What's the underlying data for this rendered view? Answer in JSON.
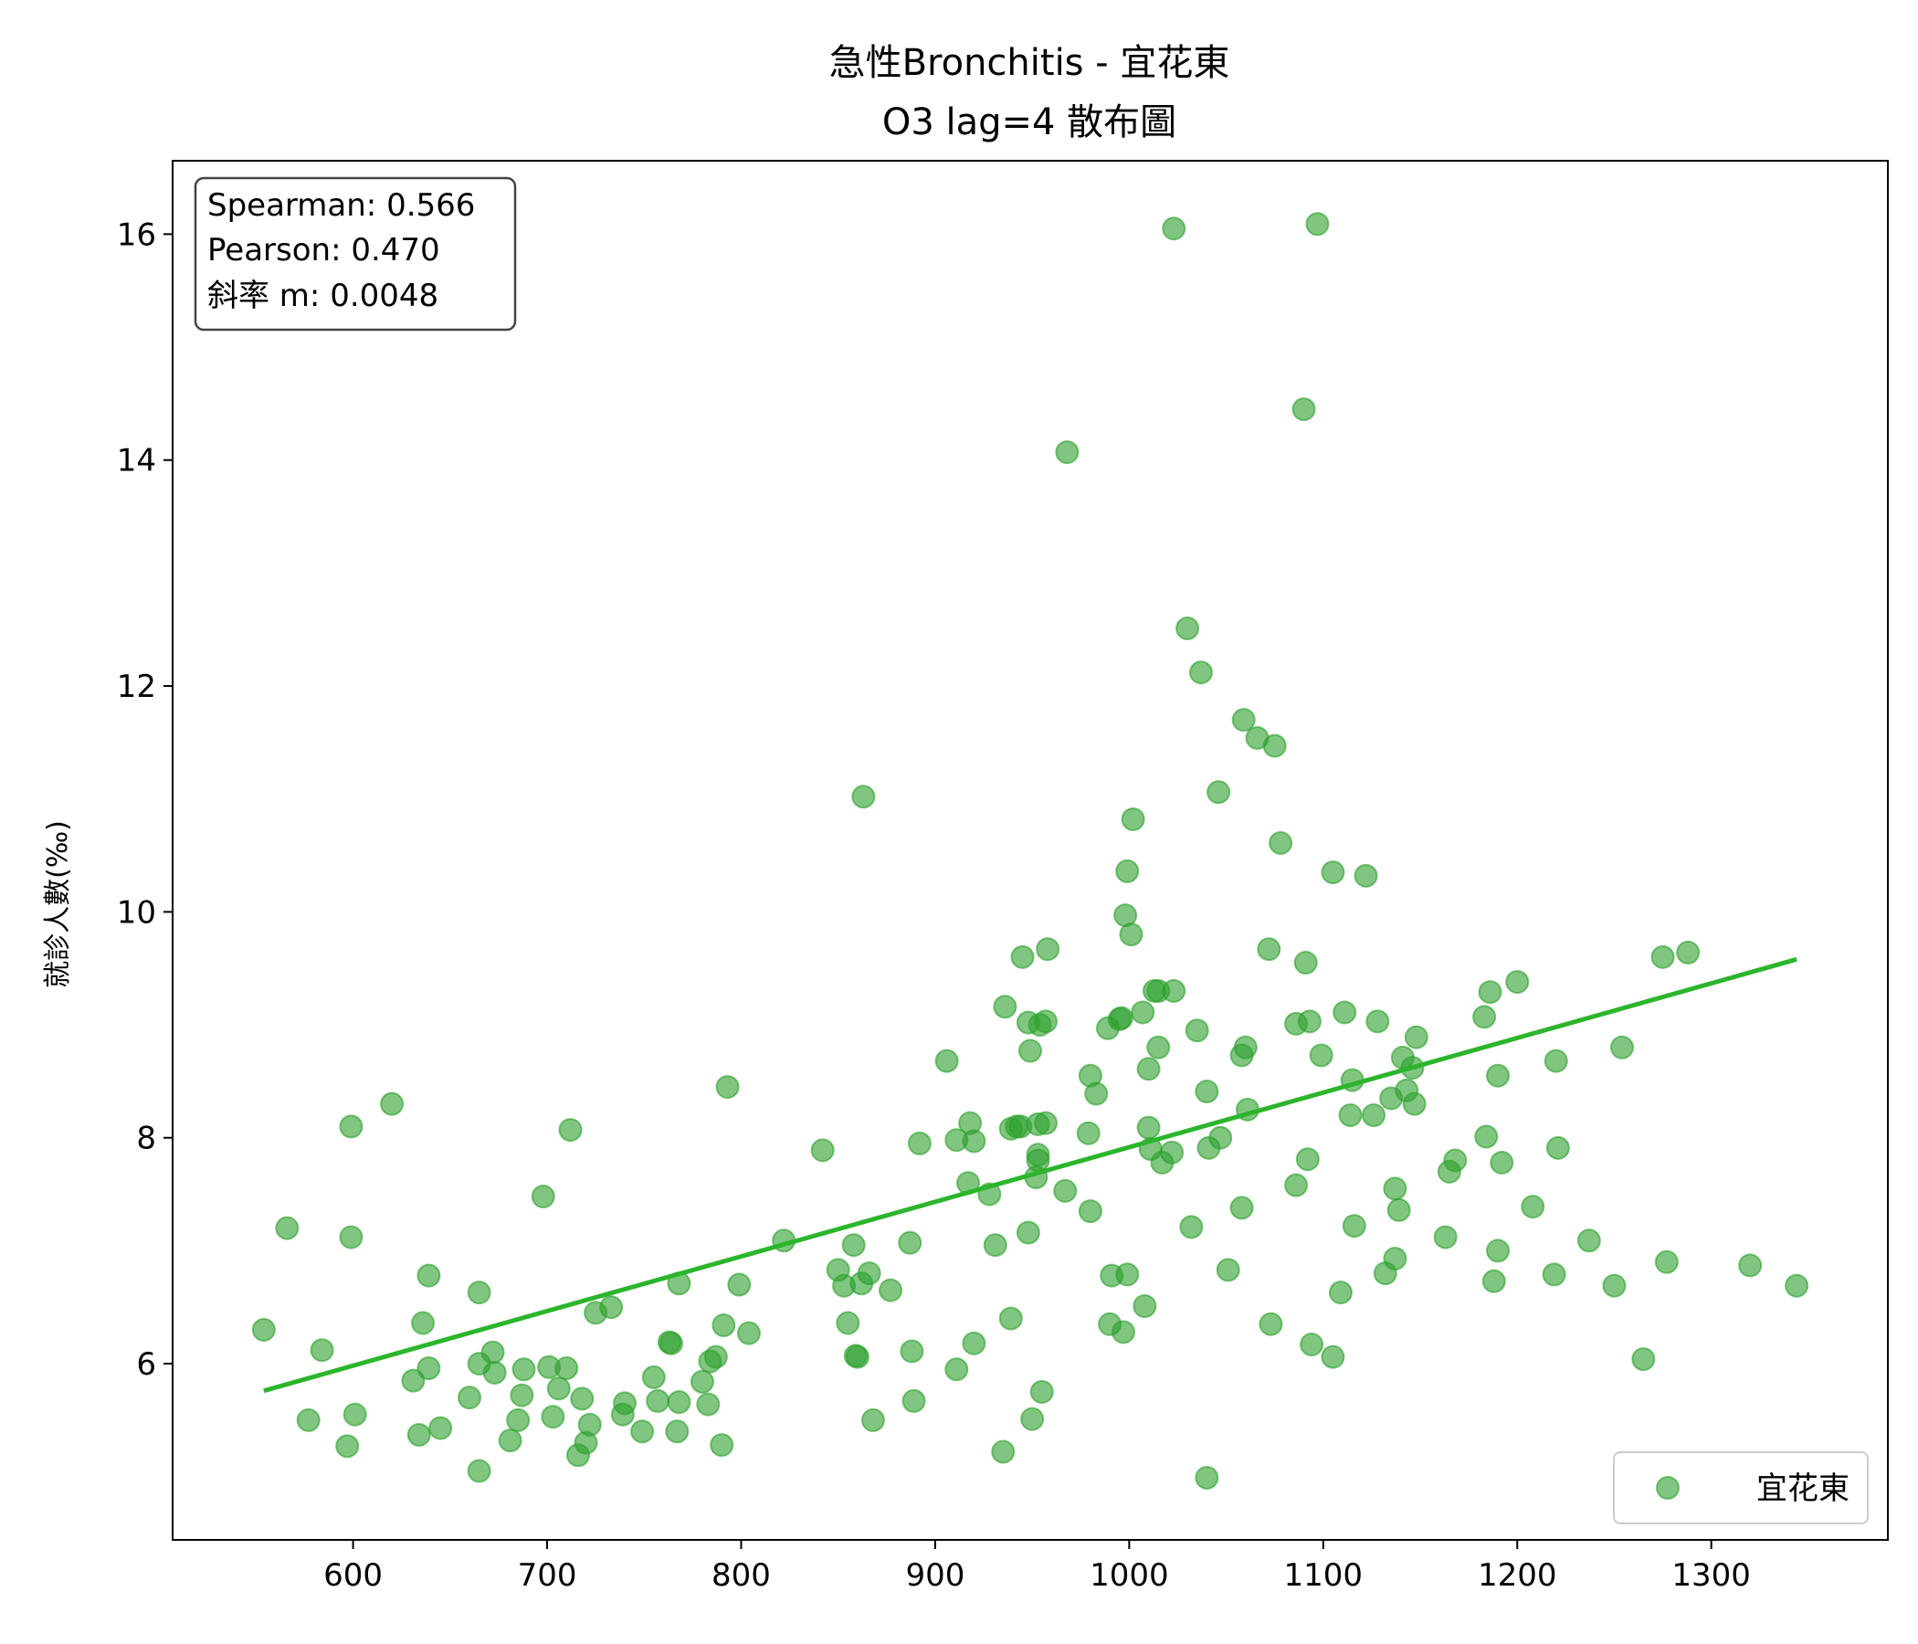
{
  "chart_data": {
    "type": "scatter",
    "title": "急性Bronchitis - 宜花東",
    "subtitle": "O3 lag=4 散布圖",
    "xlabel": "",
    "ylabel": "就診人數(‰)",
    "xlim": [
      507,
      1391
    ],
    "ylim": [
      4.44,
      16.65
    ],
    "xticks": [
      600,
      700,
      800,
      900,
      1000,
      1100,
      1200,
      1300
    ],
    "yticks": [
      6,
      8,
      10,
      12,
      14,
      16
    ],
    "grid": false,
    "legend_position": "bottom-right",
    "stats": [
      "Spearman: 0.566",
      "Pearson: 0.470",
      "斜率 m: 0.0048"
    ],
    "series": [
      {
        "name": "宜花東",
        "color": "#2ca02c",
        "points": [
          [
            554,
            6.3
          ],
          [
            566,
            7.2
          ],
          [
            577,
            5.5
          ],
          [
            584,
            6.12
          ],
          [
            597,
            5.27
          ],
          [
            599,
            8.1
          ],
          [
            599,
            7.12
          ],
          [
            601,
            5.55
          ],
          [
            620,
            8.3
          ],
          [
            631,
            5.85
          ],
          [
            634,
            5.37
          ],
          [
            636,
            6.36
          ],
          [
            639,
            6.78
          ],
          [
            639,
            5.96
          ],
          [
            645,
            5.43
          ],
          [
            660,
            5.7
          ],
          [
            665,
            5.05
          ],
          [
            665,
            6.0
          ],
          [
            665,
            6.63
          ],
          [
            672,
            6.1
          ],
          [
            673,
            5.92
          ],
          [
            681,
            5.32
          ],
          [
            685,
            5.5
          ],
          [
            687,
            5.72
          ],
          [
            688,
            5.95
          ],
          [
            698,
            7.48
          ],
          [
            701,
            5.97
          ],
          [
            703,
            5.53
          ],
          [
            706,
            5.78
          ],
          [
            710,
            5.96
          ],
          [
            712,
            8.07
          ],
          [
            716,
            5.19
          ],
          [
            718,
            5.69
          ],
          [
            720,
            5.3
          ],
          [
            722,
            5.46
          ],
          [
            725,
            6.45
          ],
          [
            733,
            6.5
          ],
          [
            739,
            5.55
          ],
          [
            740,
            5.65
          ],
          [
            749,
            5.4
          ],
          [
            755,
            5.88
          ],
          [
            757,
            5.67
          ],
          [
            763,
            6.19
          ],
          [
            764,
            6.18
          ],
          [
            767,
            5.4
          ],
          [
            768,
            5.66
          ],
          [
            768,
            6.71
          ],
          [
            780,
            5.84
          ],
          [
            783,
            5.64
          ],
          [
            784,
            6.02
          ],
          [
            787,
            6.06
          ],
          [
            790,
            5.28
          ],
          [
            791,
            6.34
          ],
          [
            793,
            8.45
          ],
          [
            799,
            6.7
          ],
          [
            804,
            6.27
          ],
          [
            822,
            7.09
          ],
          [
            842,
            7.89
          ],
          [
            850,
            6.83
          ],
          [
            853,
            6.69
          ],
          [
            855,
            6.36
          ],
          [
            858,
            7.05
          ],
          [
            859,
            6.07
          ],
          [
            860,
            6.06
          ],
          [
            862,
            6.71
          ],
          [
            863,
            11.02
          ],
          [
            866,
            6.8
          ],
          [
            868,
            5.5
          ],
          [
            877,
            6.65
          ],
          [
            887,
            7.07
          ],
          [
            888,
            6.11
          ],
          [
            889,
            5.67
          ],
          [
            892,
            7.95
          ],
          [
            906,
            8.68
          ],
          [
            911,
            7.98
          ],
          [
            911,
            5.95
          ],
          [
            917,
            7.6
          ],
          [
            918,
            8.13
          ],
          [
            920,
            7.97
          ],
          [
            920,
            6.18
          ],
          [
            928,
            7.5
          ],
          [
            931,
            7.05
          ],
          [
            935,
            5.22
          ],
          [
            936,
            9.16
          ],
          [
            939,
            8.08
          ],
          [
            939,
            6.4
          ],
          [
            942,
            8.1
          ],
          [
            944,
            8.1
          ],
          [
            945,
            9.6
          ],
          [
            948,
            7.16
          ],
          [
            948,
            9.02
          ],
          [
            949,
            8.77
          ],
          [
            950,
            5.51
          ],
          [
            952,
            7.65
          ],
          [
            953,
            7.85
          ],
          [
            953,
            7.8
          ],
          [
            953,
            8.12
          ],
          [
            954,
            9.0
          ],
          [
            955,
            5.75
          ],
          [
            957,
            8.13
          ],
          [
            957,
            9.03
          ],
          [
            958,
            9.67
          ],
          [
            967,
            7.53
          ],
          [
            968,
            14.07
          ],
          [
            979,
            8.04
          ],
          [
            980,
            8.55
          ],
          [
            980,
            7.35
          ],
          [
            983,
            8.39
          ],
          [
            989,
            8.97
          ],
          [
            990,
            6.35
          ],
          [
            991,
            6.78
          ],
          [
            995,
            9.05
          ],
          [
            996,
            9.06
          ],
          [
            997,
            6.28
          ],
          [
            998,
            9.97
          ],
          [
            999,
            10.36
          ],
          [
            999,
            6.79
          ],
          [
            1001,
            9.8
          ],
          [
            1002,
            10.82
          ],
          [
            1007,
            9.11
          ],
          [
            1008,
            6.51
          ],
          [
            1010,
            8.61
          ],
          [
            1010,
            8.09
          ],
          [
            1011,
            7.9
          ],
          [
            1013,
            9.3
          ],
          [
            1015,
            9.3
          ],
          [
            1015,
            8.8
          ],
          [
            1017,
            7.78
          ],
          [
            1022,
            7.87
          ],
          [
            1023,
            9.3
          ],
          [
            1023,
            16.05
          ],
          [
            1030,
            12.51
          ],
          [
            1032,
            7.21
          ],
          [
            1035,
            8.95
          ],
          [
            1037,
            12.12
          ],
          [
            1040,
            8.41
          ],
          [
            1040,
            4.99
          ],
          [
            1041,
            7.91
          ],
          [
            1046,
            11.06
          ],
          [
            1047,
            8.0
          ],
          [
            1051,
            6.83
          ],
          [
            1058,
            7.38
          ],
          [
            1058,
            8.73
          ],
          [
            1059,
            11.7
          ],
          [
            1060,
            8.8
          ],
          [
            1061,
            8.25
          ],
          [
            1066,
            11.54
          ],
          [
            1072,
            9.67
          ],
          [
            1073,
            6.35
          ],
          [
            1075,
            11.47
          ],
          [
            1078,
            10.61
          ],
          [
            1086,
            9.01
          ],
          [
            1086,
            7.58
          ],
          [
            1090,
            14.45
          ],
          [
            1091,
            9.55
          ],
          [
            1092,
            7.81
          ],
          [
            1093,
            9.03
          ],
          [
            1094,
            6.17
          ],
          [
            1097,
            16.09
          ],
          [
            1099,
            8.73
          ],
          [
            1105,
            10.35
          ],
          [
            1105,
            6.06
          ],
          [
            1109,
            6.63
          ],
          [
            1111,
            9.11
          ],
          [
            1114,
            8.2
          ],
          [
            1115,
            8.51
          ],
          [
            1116,
            7.22
          ],
          [
            1122,
            10.32
          ],
          [
            1126,
            8.2
          ],
          [
            1128,
            9.03
          ],
          [
            1132,
            6.8
          ],
          [
            1135,
            8.35
          ],
          [
            1137,
            6.93
          ],
          [
            1137,
            7.55
          ],
          [
            1139,
            7.36
          ],
          [
            1141,
            8.71
          ],
          [
            1143,
            8.42
          ],
          [
            1146,
            8.62
          ],
          [
            1147,
            8.3
          ],
          [
            1148,
            8.89
          ],
          [
            1163,
            7.12
          ],
          [
            1165,
            7.7
          ],
          [
            1168,
            7.8
          ],
          [
            1183,
            9.07
          ],
          [
            1184,
            8.01
          ],
          [
            1186,
            9.29
          ],
          [
            1188,
            6.73
          ],
          [
            1190,
            8.55
          ],
          [
            1190,
            7.0
          ],
          [
            1192,
            7.78
          ],
          [
            1200,
            9.38
          ],
          [
            1208,
            7.39
          ],
          [
            1219,
            6.79
          ],
          [
            1220,
            8.68
          ],
          [
            1221,
            7.91
          ],
          [
            1237,
            7.09
          ],
          [
            1250,
            6.69
          ],
          [
            1254,
            8.8
          ],
          [
            1265,
            6.04
          ],
          [
            1275,
            9.6
          ],
          [
            1277,
            6.9
          ],
          [
            1288,
            9.64
          ],
          [
            1320,
            6.87
          ],
          [
            1344,
            6.69
          ]
        ]
      }
    ],
    "fit_line": {
      "x": [
        554,
        1344
      ],
      "y": [
        5.76,
        9.58
      ]
    }
  }
}
